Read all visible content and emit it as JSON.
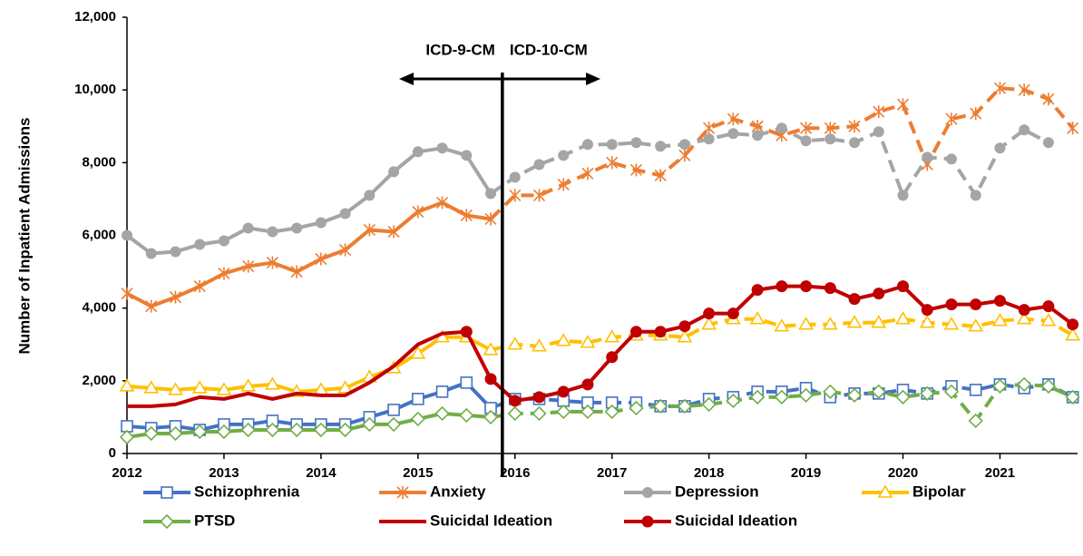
{
  "chart_data": {
    "type": "line",
    "y_label": "Number of Inpatient Admissions",
    "x": [
      2012,
      2012.25,
      2012.5,
      2012.75,
      2013,
      2013.25,
      2013.5,
      2013.75,
      2014,
      2014.25,
      2014.5,
      2014.75,
      2015,
      2015.25,
      2015.5,
      2015.75,
      2016,
      2016.25,
      2016.5,
      2016.75,
      2017,
      2017.25,
      2017.5,
      2017.75,
      2018,
      2018.25,
      2018.5,
      2018.75,
      2019,
      2019.25,
      2019.5,
      2019.75,
      2020,
      2020.25,
      2020.5,
      2020.75,
      2021,
      2021.25,
      2021.5,
      2021.75
    ],
    "xlim": [
      2012,
      2021.8
    ],
    "xticks": [
      2012,
      2013,
      2014,
      2015,
      2016,
      2017,
      2018,
      2019,
      2020,
      2021
    ],
    "ylim": [
      0,
      12000
    ],
    "yticks": [
      0,
      {
        "value": 2000,
        "label": "2,000"
      },
      {
        "value": 4000,
        "label": "4,000"
      },
      {
        "value": 6000,
        "label": "6,000"
      },
      {
        "value": 8000,
        "label": "8,000"
      },
      {
        "value": 10000,
        "label": "10,000"
      },
      {
        "value": 12000,
        "label": "12,000"
      }
    ],
    "transition": {
      "x": 2015.87,
      "left_label": "ICD-9-CM",
      "right_label": "ICD-10-CM"
    },
    "series": [
      {
        "name": "Schizophrenia",
        "color": "#4472c4",
        "marker": "square",
        "dashed_after_transition": true,
        "values": [
          750,
          700,
          750,
          650,
          800,
          800,
          900,
          800,
          800,
          800,
          1000,
          1200,
          1500,
          1700,
          1950,
          1250,
          1500,
          1500,
          1450,
          1400,
          1400,
          1400,
          1300,
          1300,
          1500,
          1550,
          1700,
          1700,
          1800,
          1550,
          1650,
          1650,
          1750,
          1650,
          1850,
          1750,
          1900,
          1800,
          1900,
          1550
        ]
      },
      {
        "name": "Anxiety",
        "color": "#ed7d31",
        "marker": "asterisk",
        "dashed_after_transition": true,
        "values": [
          4400,
          4050,
          4300,
          4600,
          4950,
          5150,
          5250,
          5000,
          5350,
          5600,
          6150,
          6100,
          6650,
          6900,
          6550,
          6450,
          7100,
          7100,
          7400,
          7700,
          8000,
          7800,
          7650,
          8200,
          8950,
          9200,
          9000,
          8750,
          8950,
          8950,
          9000,
          9400,
          9600,
          7950,
          9200,
          9350,
          10050,
          10000,
          9750,
          8950
        ]
      },
      {
        "name": "Depression",
        "color": "#a5a5a5",
        "marker": "circle",
        "dashed_after_transition": true,
        "values": [
          6000,
          5500,
          5550,
          5750,
          5850,
          6200,
          6100,
          6200,
          6350,
          6600,
          7100,
          7750,
          8300,
          8400,
          8200,
          7150,
          7600,
          7950,
          8200,
          8500,
          8500,
          8550,
          8450,
          8500,
          8650,
          8800,
          8750,
          8950,
          8600,
          8650,
          8550,
          8850,
          7100,
          8150,
          8100,
          7100,
          8400,
          8900,
          8550,
          null
        ]
      },
      {
        "name": "Bipolar",
        "color": "#ffc000",
        "marker": "triangle",
        "dashed_after_transition": true,
        "values": [
          1850,
          1800,
          1750,
          1800,
          1750,
          1850,
          1900,
          1700,
          1750,
          1800,
          2100,
          2350,
          2750,
          3200,
          3200,
          2850,
          3000,
          2950,
          3100,
          3050,
          3200,
          3250,
          3250,
          3200,
          3550,
          3700,
          3700,
          3500,
          3550,
          3550,
          3600,
          3600,
          3700,
          3600,
          3550,
          3500,
          3650,
          3700,
          3650,
          3250
        ]
      },
      {
        "name": "PTSD",
        "color": "#70ad47",
        "marker": "diamond",
        "dashed_after_transition": true,
        "values": [
          450,
          550,
          550,
          600,
          600,
          650,
          650,
          650,
          650,
          650,
          800,
          800,
          950,
          1100,
          1050,
          1000,
          1100,
          1100,
          1150,
          1150,
          1150,
          1250,
          1300,
          1300,
          1350,
          1450,
          1550,
          1550,
          1600,
          1700,
          1600,
          1700,
          1550,
          1650,
          1700,
          900,
          1850,
          1900,
          1850,
          1550
        ]
      },
      {
        "name": "Suicidal Ideation",
        "color": "#c00000",
        "marker": "none",
        "dashed_after_transition": false,
        "values": [
          1300,
          1300,
          1350,
          1550,
          1500,
          1650,
          1500,
          1650,
          1600,
          1600,
          1950,
          2400,
          3000,
          3300,
          3350,
          null,
          null,
          null,
          null,
          null,
          null,
          null,
          null,
          null,
          null,
          null,
          null,
          null,
          null,
          null,
          null,
          null,
          null,
          null,
          null,
          null,
          null,
          null,
          null,
          null
        ]
      },
      {
        "name": "Suicidal Ideation",
        "color": "#c00000",
        "marker": "dot",
        "dashed_after_transition": false,
        "values": [
          null,
          null,
          null,
          null,
          null,
          null,
          null,
          null,
          null,
          null,
          null,
          null,
          null,
          null,
          3350,
          2050,
          1450,
          1550,
          1700,
          1900,
          2650,
          3350,
          3350,
          3500,
          3850,
          3850,
          4500,
          4600,
          4600,
          4550,
          4250,
          4400,
          4600,
          3950,
          4100,
          4100,
          4200,
          3950,
          4050,
          3550
        ]
      }
    ]
  }
}
